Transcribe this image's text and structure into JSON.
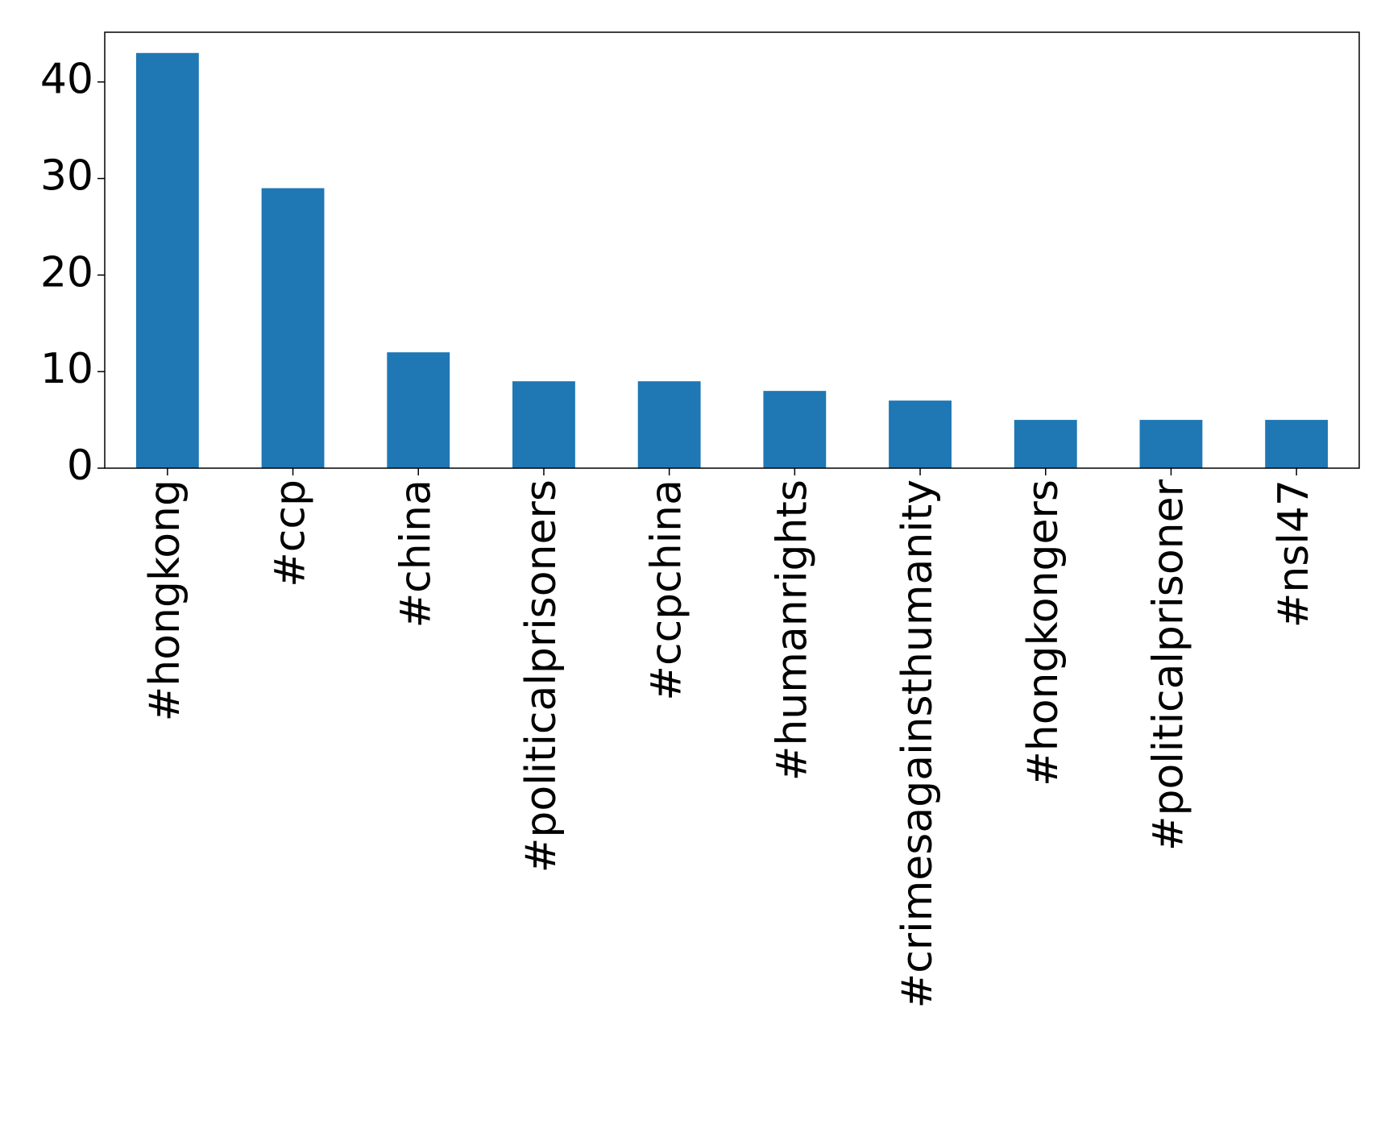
{
  "chart_data": {
    "type": "bar",
    "categories": [
      "#hongkong",
      "#ccp",
      "#china",
      "#politicalprisoners",
      "#ccpchina",
      "#humanrights",
      "#crimesagainsthumanity",
      "#hongkongers",
      "#politicalprisoner",
      "#nsl47"
    ],
    "values": [
      43,
      29,
      12,
      9,
      9,
      8,
      7,
      5,
      5,
      5
    ],
    "color": "#1f77b4",
    "ylim": [
      0,
      45.15
    ],
    "yticks": [
      0,
      10,
      20,
      30,
      40
    ],
    "grid": false
  }
}
